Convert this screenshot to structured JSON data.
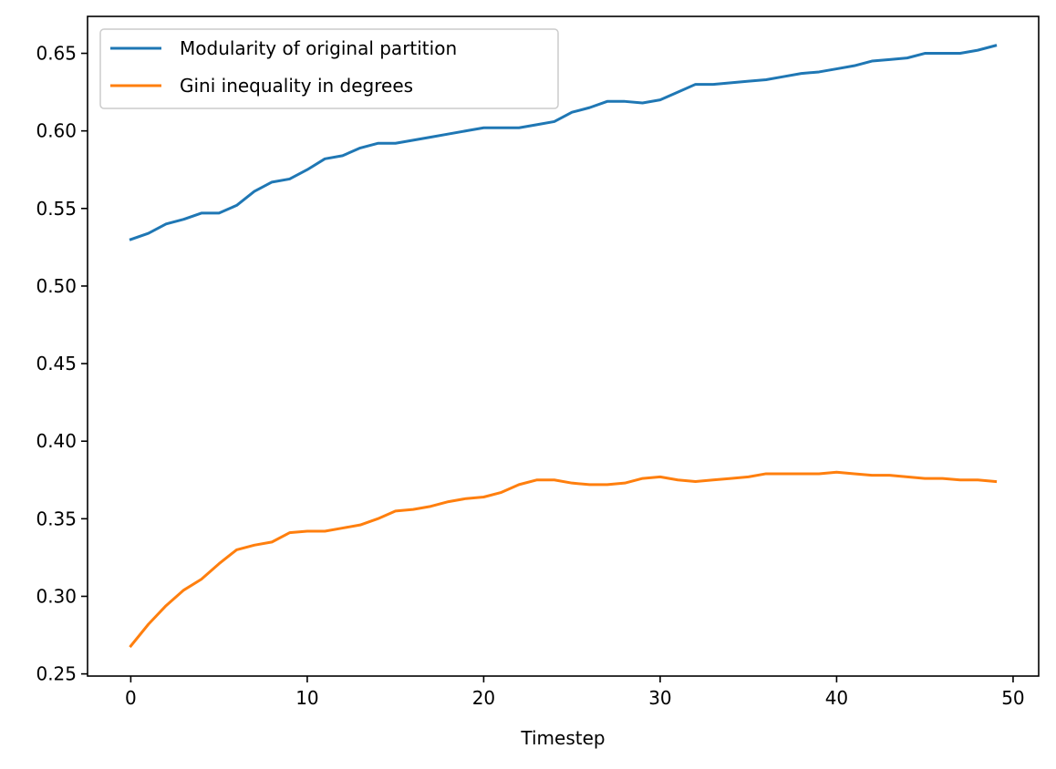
{
  "chart_data": {
    "type": "line",
    "title": "",
    "xlabel": "Timestep",
    "ylabel": "",
    "xlim": [
      -2.45,
      51.45
    ],
    "ylim": [
      0.2486,
      0.6738
    ],
    "xticks": [
      0,
      10,
      20,
      30,
      40,
      50
    ],
    "xtick_labels": [
      "0",
      "10",
      "20",
      "30",
      "40",
      "50"
    ],
    "yticks": [
      0.25,
      0.3,
      0.35,
      0.4,
      0.45,
      0.5,
      0.55,
      0.6,
      0.65
    ],
    "ytick_labels": [
      "0.25",
      "0.30",
      "0.35",
      "0.40",
      "0.45",
      "0.50",
      "0.55",
      "0.60",
      "0.65"
    ],
    "grid": false,
    "legend_position": "top-left",
    "x": [
      0,
      1,
      2,
      3,
      4,
      5,
      6,
      7,
      8,
      9,
      10,
      11,
      12,
      13,
      14,
      15,
      16,
      17,
      18,
      19,
      20,
      21,
      22,
      23,
      24,
      25,
      26,
      27,
      28,
      29,
      30,
      31,
      32,
      33,
      34,
      35,
      36,
      37,
      38,
      39,
      40,
      41,
      42,
      43,
      44,
      45,
      46,
      47,
      48,
      49
    ],
    "series": [
      {
        "name": "Modularity of original partition",
        "color": "#1f77b4",
        "values": [
          0.53,
          0.534,
          0.54,
          0.543,
          0.547,
          0.547,
          0.552,
          0.561,
          0.567,
          0.569,
          0.575,
          0.582,
          0.584,
          0.589,
          0.592,
          0.592,
          0.594,
          0.596,
          0.598,
          0.6,
          0.602,
          0.602,
          0.602,
          0.604,
          0.606,
          0.612,
          0.615,
          0.619,
          0.619,
          0.618,
          0.62,
          0.625,
          0.63,
          0.63,
          0.631,
          0.632,
          0.633,
          0.635,
          0.637,
          0.638,
          0.64,
          0.642,
          0.645,
          0.646,
          0.647,
          0.65,
          0.65,
          0.65,
          0.652,
          0.655
        ]
      },
      {
        "name": "Gini inequality in degrees",
        "color": "#ff7f0e",
        "values": [
          0.268,
          0.282,
          0.294,
          0.304,
          0.311,
          0.321,
          0.33,
          0.333,
          0.335,
          0.341,
          0.342,
          0.342,
          0.344,
          0.346,
          0.35,
          0.355,
          0.356,
          0.358,
          0.361,
          0.363,
          0.364,
          0.367,
          0.372,
          0.375,
          0.375,
          0.373,
          0.372,
          0.372,
          0.373,
          0.376,
          0.377,
          0.375,
          0.374,
          0.375,
          0.376,
          0.377,
          0.379,
          0.379,
          0.379,
          0.379,
          0.38,
          0.379,
          0.378,
          0.378,
          0.377,
          0.376,
          0.376,
          0.375,
          0.375,
          0.374
        ]
      }
    ]
  }
}
